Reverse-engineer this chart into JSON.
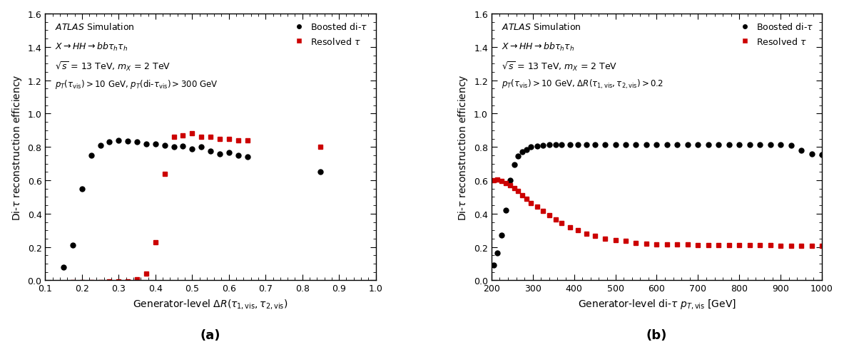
{
  "panel_a": {
    "title": "",
    "xlabel": "Generator-level $\\Delta R(\\tau_{1,\\mathrm{vis}},\\tau_{2,\\mathrm{vis}})$",
    "ylabel": "Di-$\\tau$ reconstruction efficiency",
    "xlim": [
      0.1,
      1.0
    ],
    "ylim": [
      0.0,
      1.6
    ],
    "xticks": [
      0.1,
      0.2,
      0.3,
      0.4,
      0.5,
      0.6,
      0.7,
      0.8,
      0.9,
      1.0
    ],
    "yticks": [
      0.0,
      0.2,
      0.4,
      0.6,
      0.8,
      1.0,
      1.2,
      1.4,
      1.6
    ],
    "boosted_x": [
      0.15,
      0.175,
      0.2,
      0.225,
      0.25,
      0.275,
      0.3,
      0.325,
      0.35,
      0.375,
      0.4,
      0.425,
      0.45,
      0.475,
      0.5,
      0.525,
      0.55,
      0.575,
      0.6,
      0.625,
      0.65,
      0.85
    ],
    "boosted_y": [
      0.08,
      0.21,
      0.55,
      0.75,
      0.81,
      0.83,
      0.84,
      0.835,
      0.83,
      0.82,
      0.82,
      0.81,
      0.8,
      0.805,
      0.79,
      0.8,
      0.775,
      0.76,
      0.765,
      0.75,
      0.74,
      0.65
    ],
    "resolved_x": [
      0.175,
      0.2,
      0.225,
      0.25,
      0.275,
      0.3,
      0.325,
      0.35,
      0.375,
      0.4,
      0.425,
      0.45,
      0.475,
      0.5,
      0.525,
      0.55,
      0.575,
      0.6,
      0.625,
      0.65,
      0.85
    ],
    "resolved_y": [
      -0.01,
      -0.01,
      -0.01,
      -0.01,
      -0.005,
      -0.005,
      -0.005,
      0.005,
      0.04,
      0.23,
      0.64,
      0.86,
      0.87,
      0.88,
      0.86,
      0.86,
      0.85,
      0.85,
      0.84,
      0.84,
      0.8
    ],
    "label_line1": "\\textbf{\\textit{ATLAS}} Simulation",
    "label_line2": "$X \\rightarrow HH \\rightarrow bb\\tau_h\\tau_h$",
    "label_line3": "$\\sqrt{s}$ = 13 TeV, $m_X$ = 2 TeV",
    "label_line4": "$p_T(\\tau_{\\mathrm{vis}}) > 10$ GeV, $p_T(\\mathrm{di}\\text{-}\\tau_{\\mathrm{vis}}) > 300$ GeV",
    "panel_label": "(a)"
  },
  "panel_b": {
    "title": "",
    "xlabel": "Generator-level di-$\\tau$ $p_{T,\\mathrm{vis}}$ [GeV]",
    "ylabel": "Di-$\\tau$ reconstruction efficiency",
    "xlim": [
      200,
      1000
    ],
    "ylim": [
      0.0,
      1.6
    ],
    "xticks": [
      200,
      300,
      400,
      500,
      600,
      700,
      800,
      900,
      1000
    ],
    "yticks": [
      0.0,
      0.2,
      0.4,
      0.6,
      0.8,
      1.0,
      1.2,
      1.4,
      1.6
    ],
    "boosted_x": [
      205,
      215,
      225,
      235,
      245,
      255,
      265,
      275,
      285,
      295,
      310,
      325,
      340,
      355,
      370,
      390,
      410,
      430,
      450,
      475,
      500,
      525,
      550,
      575,
      600,
      625,
      650,
      675,
      700,
      725,
      750,
      775,
      800,
      825,
      850,
      875,
      900,
      925,
      950,
      975,
      1000
    ],
    "boosted_y": [
      0.09,
      0.165,
      0.27,
      0.42,
      0.6,
      0.695,
      0.745,
      0.77,
      0.785,
      0.8,
      0.805,
      0.81,
      0.815,
      0.815,
      0.815,
      0.815,
      0.815,
      0.815,
      0.815,
      0.815,
      0.815,
      0.815,
      0.815,
      0.815,
      0.815,
      0.815,
      0.815,
      0.815,
      0.815,
      0.815,
      0.815,
      0.815,
      0.815,
      0.815,
      0.815,
      0.815,
      0.815,
      0.81,
      0.78,
      0.76,
      0.755
    ],
    "resolved_x": [
      205,
      215,
      225,
      235,
      245,
      255,
      265,
      275,
      285,
      295,
      310,
      325,
      340,
      355,
      370,
      390,
      410,
      430,
      450,
      475,
      500,
      525,
      550,
      575,
      600,
      625,
      650,
      675,
      700,
      725,
      750,
      775,
      800,
      825,
      850,
      875,
      900,
      925,
      950,
      975,
      1000
    ],
    "resolved_y": [
      0.6,
      0.605,
      0.595,
      0.585,
      0.57,
      0.555,
      0.535,
      0.51,
      0.49,
      0.465,
      0.44,
      0.415,
      0.39,
      0.365,
      0.345,
      0.32,
      0.3,
      0.28,
      0.265,
      0.25,
      0.24,
      0.235,
      0.225,
      0.22,
      0.215,
      0.215,
      0.215,
      0.215,
      0.21,
      0.21,
      0.21,
      0.21,
      0.21,
      0.21,
      0.21,
      0.21,
      0.205,
      0.205,
      0.205,
      0.205,
      0.205
    ],
    "label_line1": "\\textbf{\\textit{ATLAS}} Simulation",
    "label_line2": "$X \\rightarrow HH \\rightarrow bb\\tau_h\\tau_h$",
    "label_line3": "$\\sqrt{s}$ = 13 TeV, $m_X$ = 2 TeV",
    "label_line4": "$p_T(\\tau_{\\mathrm{vis}}) > 10$ GeV, $\\Delta R(\\tau_{1,\\mathrm{vis}},\\tau_{2,\\mathrm{vis}}) > 0.2$",
    "panel_label": "(b)"
  },
  "boosted_color": "#000000",
  "resolved_color": "#cc0000",
  "boosted_marker": "o",
  "resolved_marker": "s",
  "marker_size": 5
}
